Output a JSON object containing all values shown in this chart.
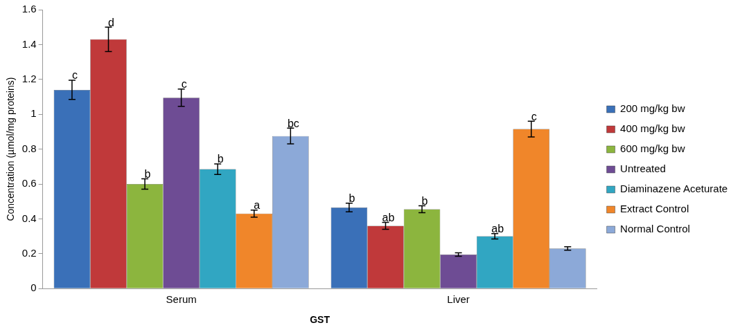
{
  "chart_data": {
    "type": "bar",
    "xlabel": "GST",
    "ylabel": "Concentration (µmol/mg proteins)",
    "categories": [
      "Serum",
      "Liver"
    ],
    "series": [
      {
        "name": "200 mg/kg bw",
        "color": "#3a70b8",
        "values": [
          1.14,
          0.465
        ],
        "errors": [
          0.055,
          0.025
        ],
        "value_labels": [
          "c",
          "b"
        ]
      },
      {
        "name": "400 mg/kg bw",
        "color": "#c0393a",
        "values": [
          1.43,
          0.36
        ],
        "errors": [
          0.07,
          0.02
        ],
        "value_labels": [
          "d",
          "ab"
        ]
      },
      {
        "name": "600 mg/kg bw",
        "color": "#8cb53e",
        "values": [
          0.6,
          0.455
        ],
        "errors": [
          0.03,
          0.02
        ],
        "value_labels": [
          "b",
          "b"
        ]
      },
      {
        "name": "Untreated",
        "color": "#6e4c94",
        "values": [
          1.095,
          0.195
        ],
        "errors": [
          0.05,
          0.01
        ],
        "value_labels": [
          "c",
          null
        ]
      },
      {
        "name": "Diaminazene Aceturate",
        "color": "#31a6c2",
        "values": [
          0.685,
          0.3
        ],
        "errors": [
          0.03,
          0.015
        ],
        "value_labels": [
          "b",
          "ab"
        ]
      },
      {
        "name": "Extract Control",
        "color": "#f0862a",
        "values": [
          0.43,
          0.915
        ],
        "errors": [
          0.02,
          0.045
        ],
        "value_labels": [
          "a",
          "c"
        ]
      },
      {
        "name": "Normal Control",
        "color": "#8ca9d8",
        "values": [
          0.875,
          0.23
        ],
        "errors": [
          0.045,
          0.01
        ],
        "value_labels": [
          "bc",
          null
        ]
      }
    ],
    "ylim": [
      0,
      1.6
    ],
    "yticks": [
      0,
      0.2,
      0.4,
      0.6,
      0.8,
      1,
      1.2,
      1.4,
      1.6
    ],
    "grid": false,
    "legend": "right"
  }
}
